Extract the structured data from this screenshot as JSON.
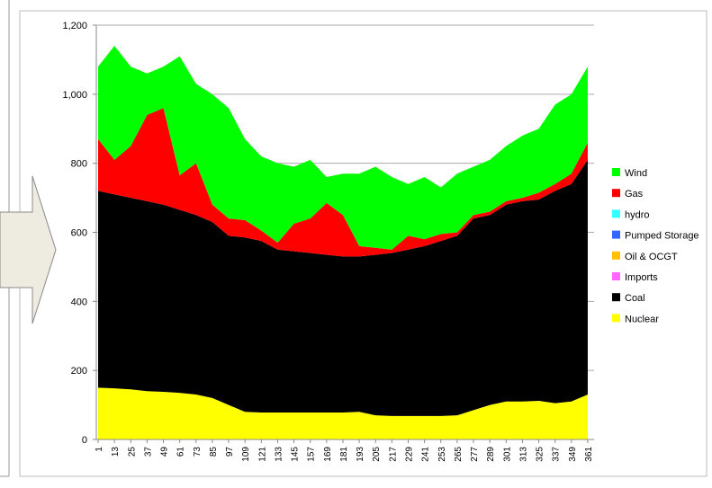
{
  "chart_data": {
    "type": "stacked_area",
    "x": [
      1,
      13,
      25,
      37,
      49,
      61,
      73,
      85,
      97,
      109,
      121,
      133,
      145,
      157,
      169,
      181,
      193,
      205,
      217,
      229,
      241,
      253,
      265,
      277,
      289,
      301,
      313,
      325,
      337,
      349,
      361
    ],
    "xlim": [
      1,
      365
    ],
    "xticks": [
      1,
      13,
      25,
      37,
      49,
      61,
      73,
      85,
      97,
      109,
      121,
      133,
      145,
      157,
      169,
      181,
      193,
      205,
      217,
      229,
      241,
      253,
      265,
      277,
      289,
      301,
      313,
      325,
      337,
      349,
      361
    ],
    "ylim": [
      0,
      1200
    ],
    "yticks": [
      0,
      200,
      400,
      600,
      800,
      {
        "value": 1000,
        "label": "1,000"
      },
      {
        "value": 1200,
        "label": "1,200"
      }
    ],
    "grid": true,
    "legend": "right",
    "series": [
      {
        "name": "Nuclear",
        "color": "#ffff00",
        "values": [
          150,
          148,
          145,
          140,
          138,
          135,
          130,
          120,
          100,
          80,
          78,
          78,
          78,
          78,
          78,
          78,
          80,
          70,
          68,
          68,
          68,
          68,
          70,
          85,
          100,
          110,
          110,
          112,
          105,
          110,
          130
        ]
      },
      {
        "name": "Coal",
        "color": "#000000",
        "values": [
          570,
          562,
          555,
          550,
          542,
          530,
          520,
          510,
          490,
          505,
          497,
          472,
          467,
          462,
          457,
          452,
          450,
          465,
          472,
          482,
          492,
          507,
          520,
          555,
          550,
          570,
          580,
          583,
          615,
          630,
          680
        ]
      },
      {
        "name": "Imports",
        "color": "#ff66ff",
        "values": [
          0,
          0,
          0,
          0,
          0,
          0,
          0,
          0,
          0,
          0,
          0,
          0,
          0,
          0,
          0,
          0,
          0,
          0,
          0,
          0,
          0,
          0,
          0,
          0,
          0,
          0,
          0,
          0,
          0,
          0,
          0
        ]
      },
      {
        "name": "Oil & OCGT",
        "color": "#ffc000",
        "values": [
          0,
          0,
          0,
          0,
          0,
          0,
          0,
          0,
          0,
          0,
          0,
          0,
          0,
          0,
          0,
          0,
          0,
          0,
          0,
          0,
          0,
          0,
          0,
          0,
          0,
          0,
          0,
          0,
          0,
          0,
          0
        ]
      },
      {
        "name": "Pumped Storage",
        "color": "#3366ff",
        "values": [
          0,
          0,
          0,
          0,
          0,
          0,
          0,
          0,
          0,
          0,
          0,
          0,
          0,
          0,
          0,
          0,
          0,
          0,
          0,
          0,
          0,
          0,
          0,
          0,
          0,
          0,
          0,
          0,
          0,
          0,
          0
        ]
      },
      {
        "name": "hydro",
        "color": "#33ffff",
        "values": [
          0,
          0,
          0,
          0,
          0,
          0,
          0,
          0,
          0,
          0,
          0,
          0,
          0,
          0,
          0,
          0,
          0,
          0,
          0,
          0,
          0,
          0,
          0,
          0,
          0,
          0,
          0,
          0,
          0,
          0,
          0
        ]
      },
      {
        "name": "Gas",
        "color": "#ff0000",
        "values": [
          150,
          100,
          150,
          250,
          280,
          100,
          150,
          50,
          50,
          50,
          30,
          20,
          80,
          100,
          150,
          120,
          30,
          20,
          10,
          40,
          20,
          20,
          10,
          10,
          10,
          10,
          10,
          20,
          20,
          30,
          50
        ]
      },
      {
        "name": "Wind",
        "color": "#00ff00",
        "values": [
          210,
          330,
          230,
          120,
          120,
          345,
          230,
          320,
          320,
          235,
          215,
          230,
          165,
          170,
          75,
          120,
          210,
          235,
          210,
          150,
          180,
          135,
          170,
          140,
          150,
          160,
          180,
          185,
          230,
          230,
          220
        ]
      }
    ]
  }
}
